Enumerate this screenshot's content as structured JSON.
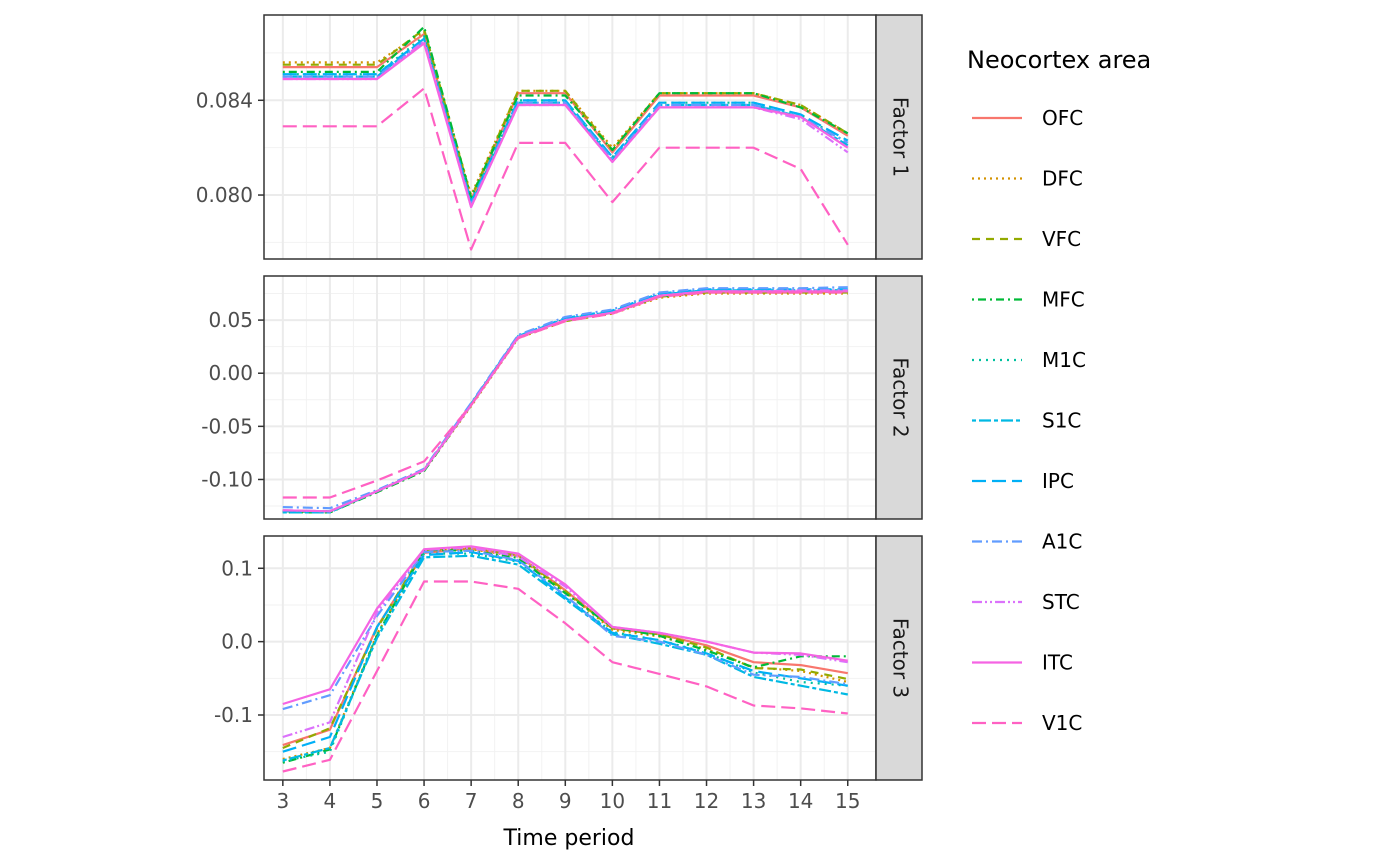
{
  "chart_data": {
    "type": "line",
    "xlabel": "Time period",
    "x": [
      3,
      4,
      5,
      6,
      7,
      8,
      9,
      10,
      11,
      12,
      13,
      14,
      15
    ],
    "legend": {
      "title": "Neocortex area",
      "position": "right"
    },
    "grid": true,
    "theme": "bw",
    "series_styles": [
      {
        "name": "OFC",
        "color": "#F8766D",
        "dash": "solid"
      },
      {
        "name": "DFC",
        "color": "#D39200",
        "dash": "dotted"
      },
      {
        "name": "VFC",
        "color": "#93AA00",
        "dash": "dashed"
      },
      {
        "name": "MFC",
        "color": "#00BA38",
        "dash": "dotdash"
      },
      {
        "name": "M1C",
        "color": "#00C19F",
        "dash": "dotted-fine"
      },
      {
        "name": "S1C",
        "color": "#00B9E3",
        "dash": "twodash"
      },
      {
        "name": "IPC",
        "color": "#00B0F6",
        "dash": "longdash"
      },
      {
        "name": "A1C",
        "color": "#619CFF",
        "dash": "dashdot"
      },
      {
        "name": "STC",
        "color": "#DB72FB",
        "dash": "dashdotdot"
      },
      {
        "name": "ITC",
        "color": "#F564E3",
        "dash": "solid"
      },
      {
        "name": "V1C",
        "color": "#FF61C3",
        "dash": "longdash"
      }
    ],
    "panels": [
      {
        "strip": "Factor 1",
        "ylim": [
          0.0773,
          0.0876
        ],
        "yticks": [
          0.08,
          0.084
        ],
        "ytick_labels": [
          "0.080",
          "0.084"
        ],
        "series": [
          {
            "name": "OFC",
            "values": [
              0.0854,
              0.0854,
              0.0854,
              0.0868,
              0.0798,
              0.0843,
              0.0843,
              0.0818,
              0.0842,
              0.0842,
              0.0842,
              0.0837,
              0.0825
            ]
          },
          {
            "name": "DFC",
            "values": [
              0.0856,
              0.0856,
              0.0856,
              0.0869,
              0.08,
              0.0844,
              0.0844,
              0.082,
              0.0843,
              0.0843,
              0.0843,
              0.0838,
              0.0826
            ]
          },
          {
            "name": "VFC",
            "values": [
              0.0855,
              0.0855,
              0.0855,
              0.087,
              0.0799,
              0.0844,
              0.0844,
              0.0819,
              0.0843,
              0.0843,
              0.0843,
              0.0838,
              0.0826
            ]
          },
          {
            "name": "MFC",
            "values": [
              0.0852,
              0.0852,
              0.0852,
              0.0871,
              0.0799,
              0.0842,
              0.0842,
              0.0819,
              0.0843,
              0.0843,
              0.0843,
              0.0837,
              0.0826
            ]
          },
          {
            "name": "M1C",
            "values": [
              0.0851,
              0.0851,
              0.0851,
              0.0867,
              0.0797,
              0.084,
              0.084,
              0.0816,
              0.0839,
              0.0839,
              0.0839,
              0.0834,
              0.0822
            ]
          },
          {
            "name": "S1C",
            "values": [
              0.085,
              0.085,
              0.085,
              0.0866,
              0.0796,
              0.0839,
              0.0839,
              0.0815,
              0.0838,
              0.0838,
              0.0838,
              0.0833,
              0.0821
            ]
          },
          {
            "name": "IPC",
            "values": [
              0.0851,
              0.0851,
              0.0851,
              0.0866,
              0.0797,
              0.084,
              0.084,
              0.0816,
              0.0839,
              0.0839,
              0.0839,
              0.0834,
              0.0823
            ]
          },
          {
            "name": "A1C",
            "values": [
              0.085,
              0.085,
              0.085,
              0.0865,
              0.0796,
              0.0839,
              0.0839,
              0.0815,
              0.0838,
              0.0838,
              0.0838,
              0.0833,
              0.0822
            ]
          },
          {
            "name": "STC",
            "values": [
              0.0849,
              0.0849,
              0.0849,
              0.0865,
              0.0795,
              0.0838,
              0.0838,
              0.0814,
              0.0837,
              0.0837,
              0.0837,
              0.0832,
              0.0818
            ]
          },
          {
            "name": "ITC",
            "values": [
              0.0849,
              0.0849,
              0.0849,
              0.0864,
              0.0795,
              0.0838,
              0.0838,
              0.0814,
              0.0837,
              0.0837,
              0.0837,
              0.0833,
              0.082
            ]
          },
          {
            "name": "V1C",
            "values": [
              0.0829,
              0.0829,
              0.0829,
              0.0845,
              0.0777,
              0.0822,
              0.0822,
              0.0797,
              0.082,
              0.082,
              0.082,
              0.0811,
              0.0779
            ]
          }
        ]
      },
      {
        "strip": "Factor 2",
        "ylim": [
          -0.1372,
          0.0915
        ],
        "yticks": [
          -0.1,
          -0.05,
          0.0,
          0.05
        ],
        "ytick_labels": [
          "-0.10",
          "-0.05",
          "0.00",
          "0.05"
        ],
        "series": [
          {
            "name": "OFC",
            "values": [
              -0.129,
              -0.13,
              -0.111,
              -0.091,
              -0.03,
              0.034,
              0.05,
              0.057,
              0.072,
              0.076,
              0.076,
              0.076,
              0.077
            ]
          },
          {
            "name": "DFC",
            "values": [
              -0.13,
              -0.131,
              -0.112,
              -0.092,
              -0.031,
              0.033,
              0.049,
              0.056,
              0.071,
              0.075,
              0.075,
              0.075,
              0.075
            ]
          },
          {
            "name": "VFC",
            "values": [
              -0.13,
              -0.131,
              -0.111,
              -0.091,
              -0.03,
              0.034,
              0.049,
              0.057,
              0.072,
              0.076,
              0.076,
              0.076,
              0.076
            ]
          },
          {
            "name": "MFC",
            "values": [
              -0.131,
              -0.131,
              -0.112,
              -0.092,
              -0.03,
              0.034,
              0.05,
              0.057,
              0.072,
              0.077,
              0.077,
              0.077,
              0.077
            ]
          },
          {
            "name": "M1C",
            "values": [
              -0.13,
              -0.13,
              -0.111,
              -0.091,
              -0.029,
              0.035,
              0.051,
              0.058,
              0.074,
              0.078,
              0.078,
              0.078,
              0.078
            ]
          },
          {
            "name": "S1C",
            "values": [
              -0.131,
              -0.131,
              -0.111,
              -0.091,
              -0.029,
              0.035,
              0.051,
              0.058,
              0.074,
              0.078,
              0.078,
              0.078,
              0.078
            ]
          },
          {
            "name": "IPC",
            "values": [
              -0.13,
              -0.13,
              -0.111,
              -0.091,
              -0.029,
              0.035,
              0.052,
              0.059,
              0.075,
              0.079,
              0.079,
              0.079,
              0.079
            ]
          },
          {
            "name": "A1C",
            "values": [
              -0.126,
              -0.127,
              -0.11,
              -0.09,
              -0.028,
              0.036,
              0.053,
              0.06,
              0.076,
              0.08,
              0.08,
              0.08,
              0.081
            ]
          },
          {
            "name": "STC",
            "values": [
              -0.129,
              -0.13,
              -0.111,
              -0.091,
              -0.03,
              0.034,
              0.05,
              0.057,
              0.073,
              0.077,
              0.077,
              0.078,
              0.078
            ]
          },
          {
            "name": "ITC",
            "values": [
              -0.129,
              -0.13,
              -0.111,
              -0.091,
              -0.03,
              0.034,
              0.05,
              0.057,
              0.073,
              0.077,
              0.077,
              0.077,
              0.077
            ]
          },
          {
            "name": "V1C",
            "values": [
              -0.117,
              -0.117,
              -0.101,
              -0.083,
              -0.03,
              0.033,
              0.049,
              0.056,
              0.072,
              0.076,
              0.076,
              0.076,
              0.076
            ]
          }
        ]
      },
      {
        "strip": "Factor 3",
        "ylim": [
          -0.1886,
          0.144
        ],
        "yticks": [
          -0.1,
          0.0,
          0.1
        ],
        "ytick_labels": [
          "-0.1",
          "0.0",
          "0.1"
        ],
        "series": [
          {
            "name": "OFC",
            "values": [
              -0.141,
              -0.12,
              0.02,
              0.121,
              0.127,
              0.117,
              0.07,
              0.018,
              0.01,
              -0.005,
              -0.028,
              -0.032,
              -0.043
            ]
          },
          {
            "name": "DFC",
            "values": [
              -0.16,
              -0.145,
              0.01,
              0.124,
              0.126,
              0.116,
              0.068,
              0.016,
              0.007,
              -0.01,
              -0.035,
              -0.04,
              -0.055
            ]
          },
          {
            "name": "VFC",
            "values": [
              -0.145,
              -0.118,
              0.018,
              0.125,
              0.128,
              0.118,
              0.069,
              0.018,
              0.01,
              -0.008,
              -0.036,
              -0.038,
              -0.051
            ]
          },
          {
            "name": "MFC",
            "values": [
              -0.165,
              -0.147,
              0.008,
              0.125,
              0.124,
              0.114,
              0.066,
              0.02,
              0.008,
              -0.012,
              -0.035,
              -0.02,
              -0.02
            ]
          },
          {
            "name": "M1C",
            "values": [
              -0.163,
              -0.15,
              0.01,
              0.12,
              0.12,
              0.109,
              0.062,
              0.013,
              0.002,
              -0.015,
              -0.042,
              -0.055,
              -0.06
            ]
          },
          {
            "name": "S1C",
            "values": [
              -0.162,
              -0.145,
              0.005,
              0.115,
              0.117,
              0.105,
              0.058,
              0.01,
              -0.003,
              -0.018,
              -0.048,
              -0.06,
              -0.072
            ]
          },
          {
            "name": "IPC",
            "values": [
              -0.15,
              -0.13,
              0.02,
              0.118,
              0.122,
              0.11,
              0.06,
              0.012,
              0.002,
              -0.016,
              -0.04,
              -0.05,
              -0.06
            ]
          },
          {
            "name": "A1C",
            "values": [
              -0.092,
              -0.073,
              0.035,
              0.122,
              0.124,
              0.111,
              0.063,
              0.008,
              0.0,
              -0.018,
              -0.045,
              -0.048,
              -0.058
            ]
          },
          {
            "name": "STC",
            "values": [
              -0.13,
              -0.11,
              0.04,
              0.125,
              0.128,
              0.116,
              0.075,
              0.02,
              0.012,
              0.0,
              -0.015,
              -0.018,
              -0.028
            ]
          },
          {
            "name": "ITC",
            "values": [
              -0.085,
              -0.065,
              0.045,
              0.126,
              0.13,
              0.12,
              0.078,
              0.02,
              0.012,
              0.0,
              -0.015,
              -0.016,
              -0.026
            ]
          },
          {
            "name": "V1C",
            "values": [
              -0.177,
              -0.161,
              -0.04,
              0.082,
              0.082,
              0.072,
              0.025,
              -0.028,
              -0.044,
              -0.061,
              -0.087,
              -0.091,
              -0.098
            ]
          }
        ]
      }
    ]
  }
}
